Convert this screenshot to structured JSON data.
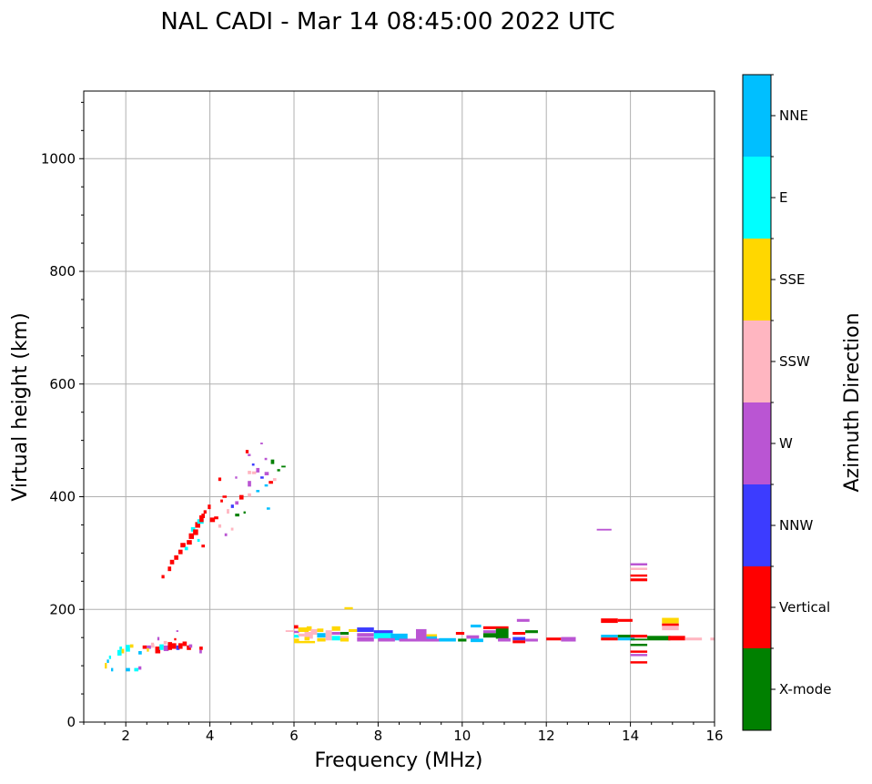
{
  "chart_data": {
    "type": "scatter",
    "title": "NAL CADI - Mar 14 08:45:00 2022 UTC",
    "xlabel": "Frequency (MHz)",
    "ylabel": "Virtual height (km)",
    "xlim": [
      1,
      16
    ],
    "ylim": [
      0,
      1120
    ],
    "xticks": [
      2,
      4,
      6,
      8,
      10,
      12,
      14,
      16
    ],
    "yticks": [
      0,
      200,
      400,
      600,
      800,
      1000
    ],
    "grid": true,
    "colorbar": {
      "label": "Azimuth Direction",
      "categories": [
        "X-mode",
        "Vertical",
        "NNW",
        "W",
        "SSW",
        "SSE",
        "E",
        "NNE"
      ],
      "colors": [
        "#008000",
        "#ff0000",
        "#3c3cff",
        "#ba55d3",
        "#ffb6c1",
        "#ffd700",
        "#00ffff",
        "#00bfff"
      ]
    },
    "point_fields": [
      "freq_mhz",
      "height_km",
      "freq_width_mhz",
      "height_span_km",
      "category_index"
    ],
    "points": [
      [
        1.5,
        95,
        0.05,
        10,
        5
      ],
      [
        1.55,
        105,
        0.05,
        6,
        7
      ],
      [
        1.6,
        112,
        0.05,
        6,
        6
      ],
      [
        1.65,
        90,
        0.05,
        6,
        7
      ],
      [
        1.8,
        118,
        0.1,
        10,
        6
      ],
      [
        1.85,
        128,
        0.06,
        6,
        6
      ],
      [
        1.9,
        122,
        0.06,
        8,
        5
      ],
      [
        2.0,
        125,
        0.1,
        12,
        6
      ],
      [
        2.0,
        90,
        0.1,
        6,
        7
      ],
      [
        2.2,
        90,
        0.1,
        6,
        6
      ],
      [
        2.3,
        120,
        0.08,
        6,
        7
      ],
      [
        2.3,
        93,
        0.07,
        6,
        3
      ],
      [
        2.1,
        132,
        0.08,
        6,
        5
      ],
      [
        2.4,
        130,
        0.1,
        6,
        1
      ],
      [
        2.5,
        130,
        0.1,
        6,
        3
      ],
      [
        2.6,
        132,
        0.08,
        6,
        4
      ],
      [
        2.7,
        122,
        0.12,
        12,
        1
      ],
      [
        2.75,
        145,
        0.05,
        6,
        3
      ],
      [
        2.8,
        128,
        0.1,
        10,
        6
      ],
      [
        2.9,
        126,
        0.12,
        10,
        3
      ],
      [
        3.0,
        128,
        0.1,
        14,
        1
      ],
      [
        3.1,
        130,
        0.1,
        10,
        1
      ],
      [
        3.2,
        128,
        0.08,
        8,
        2
      ],
      [
        3.25,
        130,
        0.1,
        10,
        1
      ],
      [
        3.35,
        135,
        0.1,
        8,
        1
      ],
      [
        3.45,
        128,
        0.1,
        8,
        1
      ],
      [
        3.5,
        132,
        0.08,
        6,
        3
      ],
      [
        3.75,
        128,
        0.08,
        6,
        1
      ],
      [
        3.75,
        122,
        0.06,
        6,
        3
      ],
      [
        3.2,
        160,
        0.05,
        3,
        3
      ],
      [
        2.9,
        138,
        0.08,
        6,
        4
      ],
      [
        3.15,
        145,
        0.05,
        4,
        1
      ],
      [
        2.6,
        135,
        0.07,
        6,
        4
      ],
      [
        2.5,
        125,
        0.05,
        6,
        5
      ],
      [
        2.85,
        255,
        0.07,
        6,
        1
      ],
      [
        3.0,
        268,
        0.08,
        8,
        1
      ],
      [
        3.05,
        280,
        0.1,
        8,
        1
      ],
      [
        3.15,
        288,
        0.1,
        8,
        1
      ],
      [
        3.25,
        298,
        0.1,
        8,
        1
      ],
      [
        3.3,
        310,
        0.12,
        8,
        1
      ],
      [
        3.4,
        305,
        0.08,
        6,
        6
      ],
      [
        3.45,
        315,
        0.12,
        8,
        1
      ],
      [
        3.5,
        325,
        0.12,
        10,
        1
      ],
      [
        3.55,
        338,
        0.1,
        8,
        6
      ],
      [
        3.6,
        332,
        0.12,
        10,
        1
      ],
      [
        3.65,
        345,
        0.12,
        10,
        1
      ],
      [
        3.7,
        352,
        0.15,
        8,
        6
      ],
      [
        3.75,
        355,
        0.1,
        12,
        1
      ],
      [
        3.8,
        362,
        0.08,
        8,
        1
      ],
      [
        3.85,
        370,
        0.07,
        6,
        1
      ],
      [
        3.95,
        378,
        0.07,
        8,
        1
      ],
      [
        4.0,
        355,
        0.12,
        8,
        1
      ],
      [
        4.1,
        360,
        0.1,
        5,
        1
      ],
      [
        3.8,
        310,
        0.08,
        5,
        1
      ],
      [
        3.7,
        320,
        0.06,
        5,
        6
      ],
      [
        4.2,
        428,
        0.07,
        6,
        1
      ],
      [
        4.25,
        390,
        0.06,
        5,
        1
      ],
      [
        4.3,
        398,
        0.1,
        4,
        1
      ],
      [
        4.2,
        345,
        0.07,
        6,
        4
      ],
      [
        4.35,
        330,
        0.06,
        5,
        3
      ],
      [
        4.4,
        370,
        0.06,
        8,
        4
      ],
      [
        4.5,
        340,
        0.06,
        5,
        4
      ],
      [
        4.5,
        380,
        0.07,
        6,
        2
      ],
      [
        4.6,
        386,
        0.08,
        6,
        3
      ],
      [
        4.6,
        365,
        0.1,
        5,
        0
      ],
      [
        4.8,
        370,
        0.05,
        4,
        0
      ],
      [
        4.7,
        395,
        0.1,
        8,
        1
      ],
      [
        4.6,
        432,
        0.05,
        4,
        3
      ],
      [
        4.9,
        400,
        0.08,
        6,
        4
      ],
      [
        4.9,
        418,
        0.08,
        10,
        3
      ],
      [
        4.9,
        440,
        0.08,
        6,
        4
      ],
      [
        5.0,
        440,
        0.1,
        5,
        4
      ],
      [
        5.1,
        443,
        0.08,
        8,
        3
      ],
      [
        5.2,
        432,
        0.08,
        4,
        2
      ],
      [
        5.1,
        408,
        0.08,
        4,
        7
      ],
      [
        5.3,
        418,
        0.08,
        4,
        7
      ],
      [
        5.3,
        438,
        0.1,
        6,
        3
      ],
      [
        5.4,
        423,
        0.1,
        5,
        1
      ],
      [
        5.0,
        455,
        0.06,
        4,
        2
      ],
      [
        5.3,
        465,
        0.06,
        4,
        3
      ],
      [
        5.45,
        458,
        0.08,
        8,
        0
      ],
      [
        5.6,
        445,
        0.07,
        4,
        0
      ],
      [
        5.7,
        452,
        0.1,
        3,
        0
      ],
      [
        4.85,
        477,
        0.07,
        6,
        1
      ],
      [
        4.9,
        472,
        0.07,
        4,
        3
      ],
      [
        5.2,
        493,
        0.06,
        3,
        3
      ],
      [
        5.5,
        428,
        0.08,
        5,
        4
      ],
      [
        5.35,
        377,
        0.08,
        4,
        7
      ],
      [
        6.0,
        166,
        0.1,
        6,
        1
      ],
      [
        6.0,
        158,
        0.12,
        4,
        3
      ],
      [
        6.0,
        150,
        0.12,
        5,
        6
      ],
      [
        6.0,
        143,
        0.12,
        5,
        5
      ],
      [
        6.1,
        160,
        0.25,
        8,
        5
      ],
      [
        6.1,
        152,
        0.15,
        5,
        4
      ],
      [
        6.25,
        148,
        0.2,
        12,
        4
      ],
      [
        6.25,
        145,
        0.12,
        6,
        5
      ],
      [
        6.3,
        162,
        0.12,
        8,
        5
      ],
      [
        6.4,
        155,
        0.15,
        10,
        4
      ],
      [
        6.55,
        160,
        0.15,
        6,
        5
      ],
      [
        6.55,
        150,
        0.2,
        8,
        7
      ],
      [
        6.55,
        143,
        0.2,
        6,
        5
      ],
      [
        6.75,
        145,
        0.15,
        18,
        4
      ],
      [
        6.9,
        162,
        0.2,
        8,
        5
      ],
      [
        6.9,
        145,
        0.2,
        8,
        6
      ],
      [
        6.9,
        155,
        0.2,
        5,
        3
      ],
      [
        7.1,
        155,
        0.2,
        5,
        0
      ],
      [
        7.1,
        148,
        0.2,
        5,
        4
      ],
      [
        7.1,
        143,
        0.2,
        6,
        5
      ],
      [
        7.2,
        200,
        0.2,
        4,
        5
      ],
      [
        7.3,
        160,
        0.2,
        5,
        5
      ],
      [
        7.5,
        160,
        0.4,
        8,
        2
      ],
      [
        7.5,
        152,
        0.4,
        6,
        3
      ],
      [
        7.5,
        143,
        0.4,
        8,
        3
      ],
      [
        7.9,
        148,
        0.45,
        12,
        6
      ],
      [
        7.9,
        158,
        0.45,
        5,
        2
      ],
      [
        8.3,
        145,
        0.4,
        12,
        7
      ],
      [
        8.0,
        143,
        0.4,
        6,
        3
      ],
      [
        8.5,
        143,
        1.0,
        5,
        3
      ],
      [
        8.9,
        145,
        0.25,
        20,
        3
      ],
      [
        9.15,
        150,
        0.25,
        6,
        5
      ],
      [
        9.15,
        147,
        0.25,
        5,
        7
      ],
      [
        9.15,
        143,
        0.3,
        5,
        3
      ],
      [
        9.45,
        143,
        0.4,
        6,
        7
      ],
      [
        9.9,
        143,
        0.2,
        5,
        0
      ],
      [
        9.85,
        155,
        0.2,
        5,
        1
      ],
      [
        10.2,
        168,
        0.25,
        5,
        7
      ],
      [
        10.1,
        148,
        0.3,
        6,
        3
      ],
      [
        10.2,
        142,
        0.3,
        6,
        7
      ],
      [
        10.5,
        150,
        0.4,
        8,
        0
      ],
      [
        10.5,
        165,
        0.6,
        5,
        1
      ],
      [
        10.5,
        158,
        0.3,
        5,
        3
      ],
      [
        10.8,
        148,
        0.3,
        18,
        0
      ],
      [
        10.85,
        143,
        0.3,
        6,
        3
      ],
      [
        11.2,
        155,
        0.3,
        5,
        1
      ],
      [
        11.2,
        145,
        0.3,
        6,
        2
      ],
      [
        11.2,
        140,
        0.3,
        5,
        1
      ],
      [
        11.3,
        178,
        0.3,
        5,
        3
      ],
      [
        11.5,
        158,
        0.3,
        5,
        0
      ],
      [
        11.5,
        143,
        0.3,
        5,
        3
      ],
      [
        12.0,
        145,
        0.35,
        5,
        1
      ],
      [
        12.35,
        143,
        0.35,
        8,
        3
      ],
      [
        6.0,
        140,
        0.5,
        4,
        5
      ],
      [
        5.8,
        160,
        0.2,
        3,
        4
      ],
      [
        13.2,
        340,
        0.35,
        3,
        3
      ],
      [
        13.3,
        176,
        0.4,
        8,
        1
      ],
      [
        13.7,
        178,
        0.35,
        5,
        1
      ],
      [
        13.3,
        150,
        0.4,
        5,
        7
      ],
      [
        13.3,
        145,
        0.4,
        5,
        1
      ],
      [
        13.7,
        150,
        0.4,
        5,
        0
      ],
      [
        13.7,
        145,
        0.4,
        5,
        7
      ],
      [
        14.0,
        150,
        0.4,
        5,
        1
      ],
      [
        14.0,
        135,
        0.4,
        4,
        0
      ],
      [
        14.0,
        123,
        0.4,
        4,
        1
      ],
      [
        14.0,
        117,
        0.4,
        4,
        3
      ],
      [
        14.0,
        104,
        0.4,
        4,
        1
      ],
      [
        14.0,
        145,
        0.4,
        3,
        0
      ],
      [
        14.4,
        145,
        0.55,
        8,
        0
      ],
      [
        14.9,
        145,
        0.4,
        8,
        1
      ],
      [
        15.3,
        145,
        0.4,
        5,
        4
      ],
      [
        15.9,
        145,
        0.1,
        5,
        4
      ],
      [
        14.75,
        175,
        0.4,
        10,
        5
      ],
      [
        14.75,
        170,
        0.4,
        5,
        1
      ],
      [
        14.75,
        163,
        0.4,
        8,
        4
      ],
      [
        14.0,
        250,
        0.4,
        5,
        1
      ],
      [
        14.0,
        258,
        0.4,
        4,
        1
      ],
      [
        14.0,
        270,
        0.4,
        4,
        4
      ],
      [
        14.0,
        278,
        0.4,
        4,
        3
      ]
    ]
  }
}
